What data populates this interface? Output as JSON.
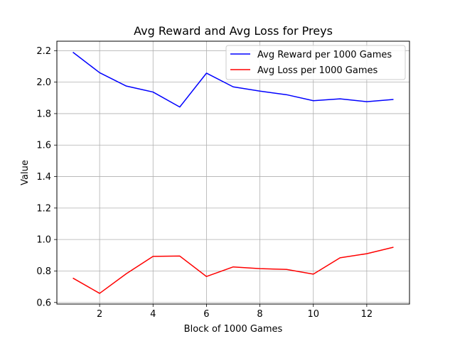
{
  "chart_data": {
    "type": "line",
    "title": "Avg Reward and Avg Loss for Preys",
    "xlabel": "Block of 1000 Games",
    "ylabel": "Value",
    "x": [
      1,
      2,
      3,
      4,
      5,
      6,
      7,
      8,
      9,
      10,
      11,
      12,
      13
    ],
    "xlim": [
      0.4,
      13.6
    ],
    "ylim": [
      0.59,
      2.26
    ],
    "xticks": [
      2,
      4,
      6,
      8,
      10,
      12
    ],
    "yticks": [
      0.6,
      0.8,
      1.0,
      1.2,
      1.4,
      1.6,
      1.8,
      2.0,
      2.2
    ],
    "xtick_labels": [
      "2",
      "4",
      "6",
      "8",
      "10",
      "12"
    ],
    "ytick_labels": [
      "0.6",
      "0.8",
      "1.0",
      "1.2",
      "1.4",
      "1.6",
      "1.8",
      "2.0",
      "2.2"
    ],
    "grid": true,
    "legend_position": "top-right",
    "series": [
      {
        "name": "Avg Reward per 1000 Games",
        "color": "#0000ff",
        "values": [
          2.19,
          2.06,
          1.975,
          1.937,
          1.842,
          2.057,
          1.97,
          1.943,
          1.92,
          1.882,
          1.894,
          1.876,
          1.89
        ]
      },
      {
        "name": "Avg Loss per 1000 Games",
        "color": "#ff0000",
        "values": [
          0.755,
          0.658,
          0.783,
          0.893,
          0.895,
          0.765,
          0.826,
          0.815,
          0.81,
          0.78,
          0.884,
          0.91,
          0.951
        ]
      }
    ]
  }
}
